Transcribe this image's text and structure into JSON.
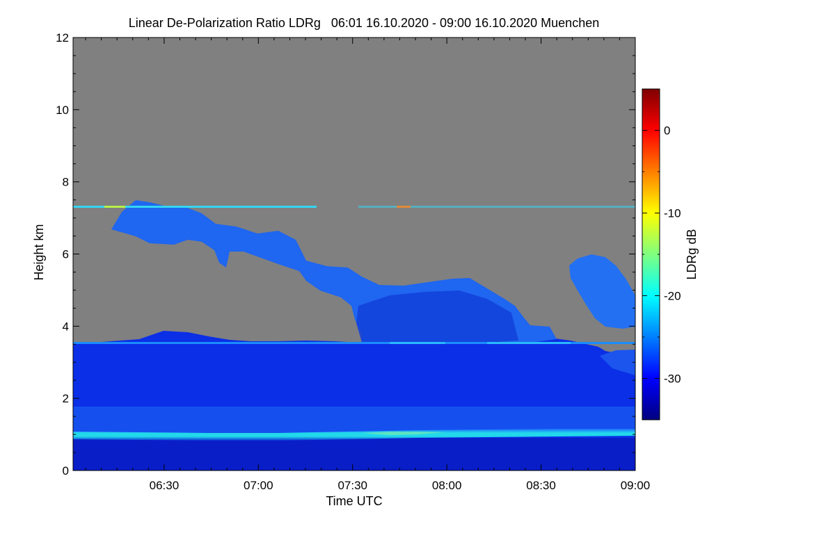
{
  "chart_data": {
    "type": "heatmap",
    "title": "Linear De-Polarization Ratio LDRg   06:01 16.10.2020 - 09:00 16.10.2020 Muenchen",
    "xlabel": "Time UTC",
    "ylabel": "Height km",
    "x_range_minutes_utc": [
      361,
      540
    ],
    "y_range_km": [
      0,
      12
    ],
    "x_tick_labels": [
      "06:30",
      "07:00",
      "07:30",
      "08:00",
      "08:30",
      "09:00"
    ],
    "x_tick_minutes": [
      390,
      420,
      450,
      480,
      510,
      540
    ],
    "y_tick_labels": [
      "0",
      "2",
      "4",
      "6",
      "8",
      "10",
      "12"
    ],
    "y_tick_values": [
      0,
      2,
      4,
      6,
      8,
      10,
      12
    ],
    "colorbar": {
      "label": "LDRg dB",
      "range_db": [
        -35,
        5
      ],
      "tick_labels": [
        "0",
        "-10",
        "-20",
        "-30"
      ],
      "tick_values": [
        0,
        -10,
        -20,
        -30
      ],
      "colormap": [
        "#00007f",
        "#0000ff",
        "#007fff",
        "#00ffff",
        "#7fff7f",
        "#ffff00",
        "#ff7f00",
        "#ff0000",
        "#7f0000"
      ]
    },
    "no_data_color": "#808080",
    "features": [
      {
        "name": "boundary-layer-top",
        "time_range_minutes": [
          361,
          540
        ],
        "height_km": 1.05,
        "ldr_db": -22
      },
      {
        "name": "aerosol-layer",
        "time_range_minutes": [
          361,
          540
        ],
        "height_top_km": 3.6,
        "ldr_db": -31
      },
      {
        "name": "upper-cloud",
        "time_range_minutes": [
          376,
          540
        ],
        "height_km_range": [
          4.0,
          7.5
        ],
        "ldr_db": -27
      },
      {
        "name": "noise-line-7.3km",
        "time_range_minutes": [
          361,
          540
        ],
        "height_km": 7.3,
        "ldr_db": -18
      }
    ]
  }
}
